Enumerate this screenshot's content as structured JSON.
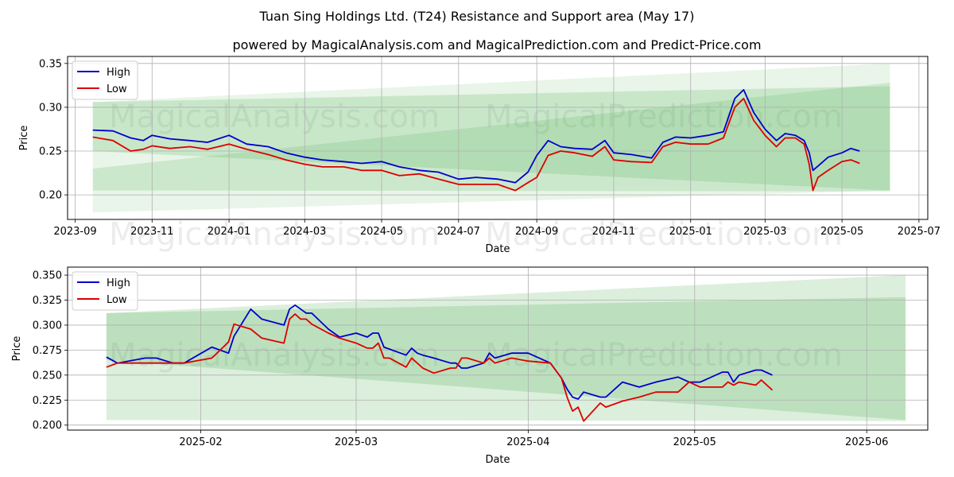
{
  "title": "Tuan Sing Holdings Ltd. (T24) Resistance and Support area (May 17)",
  "subtitle": "powered by MagicalAnalysis.com and MagicalPrediction.com and Predict-Price.com",
  "watermarks": [
    "MagicalAnalysis.com",
    "MagicalPrediction.com"
  ],
  "colors": {
    "high": "#0000cc",
    "low": "#dd0000",
    "band": "#4caf50",
    "grid": "#b0b0b0"
  },
  "chart_data": [
    {
      "type": "line",
      "xlabel": "Date",
      "ylabel": "Price",
      "xlim": [
        "2023-08-26",
        "2025-07-08"
      ],
      "ylim": [
        0.172,
        0.358
      ],
      "grid": true,
      "legend_position": "top-left",
      "x_ticks": [
        "2023-09",
        "2023-11",
        "2024-01",
        "2024-03",
        "2024-05",
        "2024-07",
        "2024-09",
        "2024-11",
        "2025-01",
        "2025-03",
        "2025-05",
        "2025-07"
      ],
      "y_ticks": [
        0.2,
        0.25,
        0.3,
        0.35
      ],
      "bands": [
        {
          "x": [
            "2023-09-15",
            "2025-06-08"
          ],
          "upper": [
            0.306,
            0.35
          ],
          "lower": [
            0.18,
            0.205
          ]
        },
        {
          "x": [
            "2023-09-15",
            "2025-06-08"
          ],
          "upper": [
            0.23,
            0.328
          ],
          "lower": [
            0.205,
            0.204
          ]
        },
        {
          "x": [
            "2023-09-15",
            "2025-06-08"
          ],
          "upper": [
            0.306,
            0.324
          ],
          "lower": [
            0.25,
            0.205
          ]
        }
      ],
      "series": [
        {
          "name": "High",
          "x": [
            "2023-09-15",
            "2023-10-01",
            "2023-10-15",
            "2023-10-25",
            "2023-11-01",
            "2023-11-15",
            "2023-12-01",
            "2023-12-15",
            "2024-01-01",
            "2024-01-15",
            "2024-02-01",
            "2024-02-15",
            "2024-03-01",
            "2024-03-15",
            "2024-04-01",
            "2024-04-15",
            "2024-05-01",
            "2024-05-15",
            "2024-05-31",
            "2024-06-15",
            "2024-07-01",
            "2024-07-15",
            "2024-08-01",
            "2024-08-15",
            "2024-08-25",
            "2024-09-01",
            "2024-09-10",
            "2024-09-20",
            "2024-10-01",
            "2024-10-15",
            "2024-10-25",
            "2024-11-01",
            "2024-11-15",
            "2024-12-01",
            "2024-12-10",
            "2024-12-20",
            "2025-01-01",
            "2025-01-15",
            "2025-01-27",
            "2025-02-05",
            "2025-02-12",
            "2025-02-20",
            "2025-03-01",
            "2025-03-10",
            "2025-03-17",
            "2025-03-25",
            "2025-04-01",
            "2025-04-05",
            "2025-04-08",
            "2025-04-12",
            "2025-04-20",
            "2025-05-01",
            "2025-05-08",
            "2025-05-15"
          ],
          "values": [
            0.274,
            0.273,
            0.265,
            0.262,
            0.268,
            0.264,
            0.262,
            0.26,
            0.268,
            0.258,
            0.255,
            0.248,
            0.243,
            0.24,
            0.238,
            0.236,
            0.238,
            0.232,
            0.228,
            0.226,
            0.218,
            0.22,
            0.218,
            0.214,
            0.226,
            0.245,
            0.262,
            0.255,
            0.253,
            0.252,
            0.262,
            0.248,
            0.246,
            0.242,
            0.26,
            0.266,
            0.265,
            0.268,
            0.272,
            0.31,
            0.32,
            0.294,
            0.275,
            0.262,
            0.27,
            0.268,
            0.262,
            0.248,
            0.228,
            0.233,
            0.243,
            0.248,
            0.253,
            0.25
          ]
        },
        {
          "name": "Low",
          "x": [
            "2023-09-15",
            "2023-10-01",
            "2023-10-15",
            "2023-10-25",
            "2023-11-01",
            "2023-11-15",
            "2023-12-01",
            "2023-12-15",
            "2024-01-01",
            "2024-01-15",
            "2024-02-01",
            "2024-02-15",
            "2024-03-01",
            "2024-03-15",
            "2024-04-01",
            "2024-04-15",
            "2024-05-01",
            "2024-05-15",
            "2024-05-31",
            "2024-06-15",
            "2024-07-01",
            "2024-07-15",
            "2024-08-01",
            "2024-08-15",
            "2024-08-25",
            "2024-09-01",
            "2024-09-10",
            "2024-09-20",
            "2024-10-01",
            "2024-10-15",
            "2024-10-25",
            "2024-11-01",
            "2024-11-15",
            "2024-12-01",
            "2024-12-10",
            "2024-12-20",
            "2025-01-01",
            "2025-01-15",
            "2025-01-27",
            "2025-02-05",
            "2025-02-12",
            "2025-02-20",
            "2025-03-01",
            "2025-03-10",
            "2025-03-17",
            "2025-03-25",
            "2025-04-01",
            "2025-04-05",
            "2025-04-08",
            "2025-04-12",
            "2025-04-20",
            "2025-05-01",
            "2025-05-08",
            "2025-05-15"
          ],
          "values": [
            0.266,
            0.262,
            0.25,
            0.252,
            0.256,
            0.253,
            0.255,
            0.252,
            0.258,
            0.252,
            0.246,
            0.24,
            0.235,
            0.232,
            0.232,
            0.228,
            0.228,
            0.222,
            0.224,
            0.218,
            0.212,
            0.212,
            0.212,
            0.205,
            0.214,
            0.22,
            0.245,
            0.25,
            0.248,
            0.244,
            0.255,
            0.24,
            0.238,
            0.237,
            0.255,
            0.26,
            0.258,
            0.258,
            0.265,
            0.3,
            0.31,
            0.285,
            0.268,
            0.255,
            0.265,
            0.265,
            0.258,
            0.235,
            0.205,
            0.22,
            0.228,
            0.238,
            0.24,
            0.236
          ]
        }
      ]
    },
    {
      "type": "line",
      "xlabel": "Date",
      "ylabel": "Price",
      "xlim": [
        "2025-01-08",
        "2025-06-12"
      ],
      "ylim": [
        0.195,
        0.358
      ],
      "grid": true,
      "legend_position": "top-left",
      "x_ticks": [
        "2025-02",
        "2025-03",
        "2025-04",
        "2025-05",
        "2025-06"
      ],
      "y_ticks": [
        0.2,
        0.225,
        0.25,
        0.275,
        0.3,
        0.325,
        0.35
      ],
      "bands": [
        {
          "x": [
            "2025-01-15",
            "2025-06-08"
          ],
          "upper": [
            0.312,
            0.35
          ],
          "lower": [
            0.205,
            0.204
          ]
        },
        {
          "x": [
            "2025-01-15",
            "2025-06-08"
          ],
          "upper": [
            0.312,
            0.328
          ],
          "lower": [
            0.265,
            0.205
          ]
        }
      ],
      "series": [
        {
          "name": "High",
          "x": [
            "2025-01-15",
            "2025-01-17",
            "2025-01-22",
            "2025-01-24",
            "2025-01-27",
            "2025-01-29",
            "2025-02-03",
            "2025-02-06",
            "2025-02-07",
            "2025-02-10",
            "2025-02-12",
            "2025-02-16",
            "2025-02-17",
            "2025-02-18",
            "2025-02-19",
            "2025-02-20",
            "2025-02-21",
            "2025-02-24",
            "2025-02-26",
            "2025-03-01",
            "2025-03-03",
            "2025-03-04",
            "2025-03-05",
            "2025-03-06",
            "2025-03-07",
            "2025-03-10",
            "2025-03-11",
            "2025-03-12",
            "2025-03-13",
            "2025-03-15",
            "2025-03-18",
            "2025-03-19",
            "2025-03-20",
            "2025-03-21",
            "2025-03-24",
            "2025-03-25",
            "2025-03-26",
            "2025-03-29",
            "2025-04-01",
            "2025-04-05",
            "2025-04-07",
            "2025-04-08",
            "2025-04-09",
            "2025-04-10",
            "2025-04-11",
            "2025-04-14",
            "2025-04-15",
            "2025-04-18",
            "2025-04-21",
            "2025-04-24",
            "2025-04-28",
            "2025-04-30",
            "2025-05-02",
            "2025-05-06",
            "2025-05-07",
            "2025-05-08",
            "2025-05-09",
            "2025-05-12",
            "2025-05-13",
            "2025-05-15"
          ],
          "values": [
            0.268,
            0.262,
            0.267,
            0.267,
            0.262,
            0.262,
            0.278,
            0.272,
            0.289,
            0.316,
            0.306,
            0.3,
            0.316,
            0.32,
            0.316,
            0.312,
            0.312,
            0.296,
            0.288,
            0.292,
            0.288,
            0.292,
            0.292,
            0.278,
            0.276,
            0.27,
            0.277,
            0.272,
            0.27,
            0.267,
            0.262,
            0.262,
            0.257,
            0.257,
            0.262,
            0.272,
            0.267,
            0.272,
            0.272,
            0.262,
            0.247,
            0.236,
            0.228,
            0.226,
            0.233,
            0.228,
            0.228,
            0.243,
            0.238,
            0.243,
            0.248,
            0.243,
            0.243,
            0.253,
            0.253,
            0.243,
            0.25,
            0.255,
            0.255,
            0.25
          ]
        },
        {
          "name": "Low",
          "x": [
            "2025-01-15",
            "2025-01-17",
            "2025-01-22",
            "2025-01-24",
            "2025-01-27",
            "2025-01-29",
            "2025-02-03",
            "2025-02-06",
            "2025-02-07",
            "2025-02-10",
            "2025-02-12",
            "2025-02-16",
            "2025-02-17",
            "2025-02-18",
            "2025-02-19",
            "2025-02-20",
            "2025-02-21",
            "2025-02-24",
            "2025-02-26",
            "2025-03-01",
            "2025-03-03",
            "2025-03-04",
            "2025-03-05",
            "2025-03-06",
            "2025-03-07",
            "2025-03-10",
            "2025-03-11",
            "2025-03-12",
            "2025-03-13",
            "2025-03-15",
            "2025-03-18",
            "2025-03-19",
            "2025-03-20",
            "2025-03-21",
            "2025-03-24",
            "2025-03-25",
            "2025-03-26",
            "2025-03-29",
            "2025-04-01",
            "2025-04-05",
            "2025-04-07",
            "2025-04-08",
            "2025-04-09",
            "2025-04-10",
            "2025-04-11",
            "2025-04-14",
            "2025-04-15",
            "2025-04-18",
            "2025-04-21",
            "2025-04-24",
            "2025-04-28",
            "2025-04-30",
            "2025-05-02",
            "2025-05-06",
            "2025-05-07",
            "2025-05-08",
            "2025-05-09",
            "2025-05-12",
            "2025-05-13",
            "2025-05-15"
          ],
          "values": [
            0.258,
            0.262,
            0.262,
            0.262,
            0.262,
            0.262,
            0.267,
            0.283,
            0.301,
            0.296,
            0.287,
            0.282,
            0.306,
            0.311,
            0.306,
            0.306,
            0.301,
            0.292,
            0.287,
            0.282,
            0.277,
            0.277,
            0.282,
            0.267,
            0.267,
            0.258,
            0.267,
            0.262,
            0.257,
            0.252,
            0.257,
            0.257,
            0.267,
            0.267,
            0.262,
            0.267,
            0.262,
            0.267,
            0.264,
            0.262,
            0.247,
            0.228,
            0.214,
            0.218,
            0.204,
            0.222,
            0.218,
            0.224,
            0.228,
            0.233,
            0.233,
            0.243,
            0.238,
            0.238,
            0.243,
            0.24,
            0.243,
            0.24,
            0.245,
            0.235
          ]
        }
      ]
    }
  ]
}
